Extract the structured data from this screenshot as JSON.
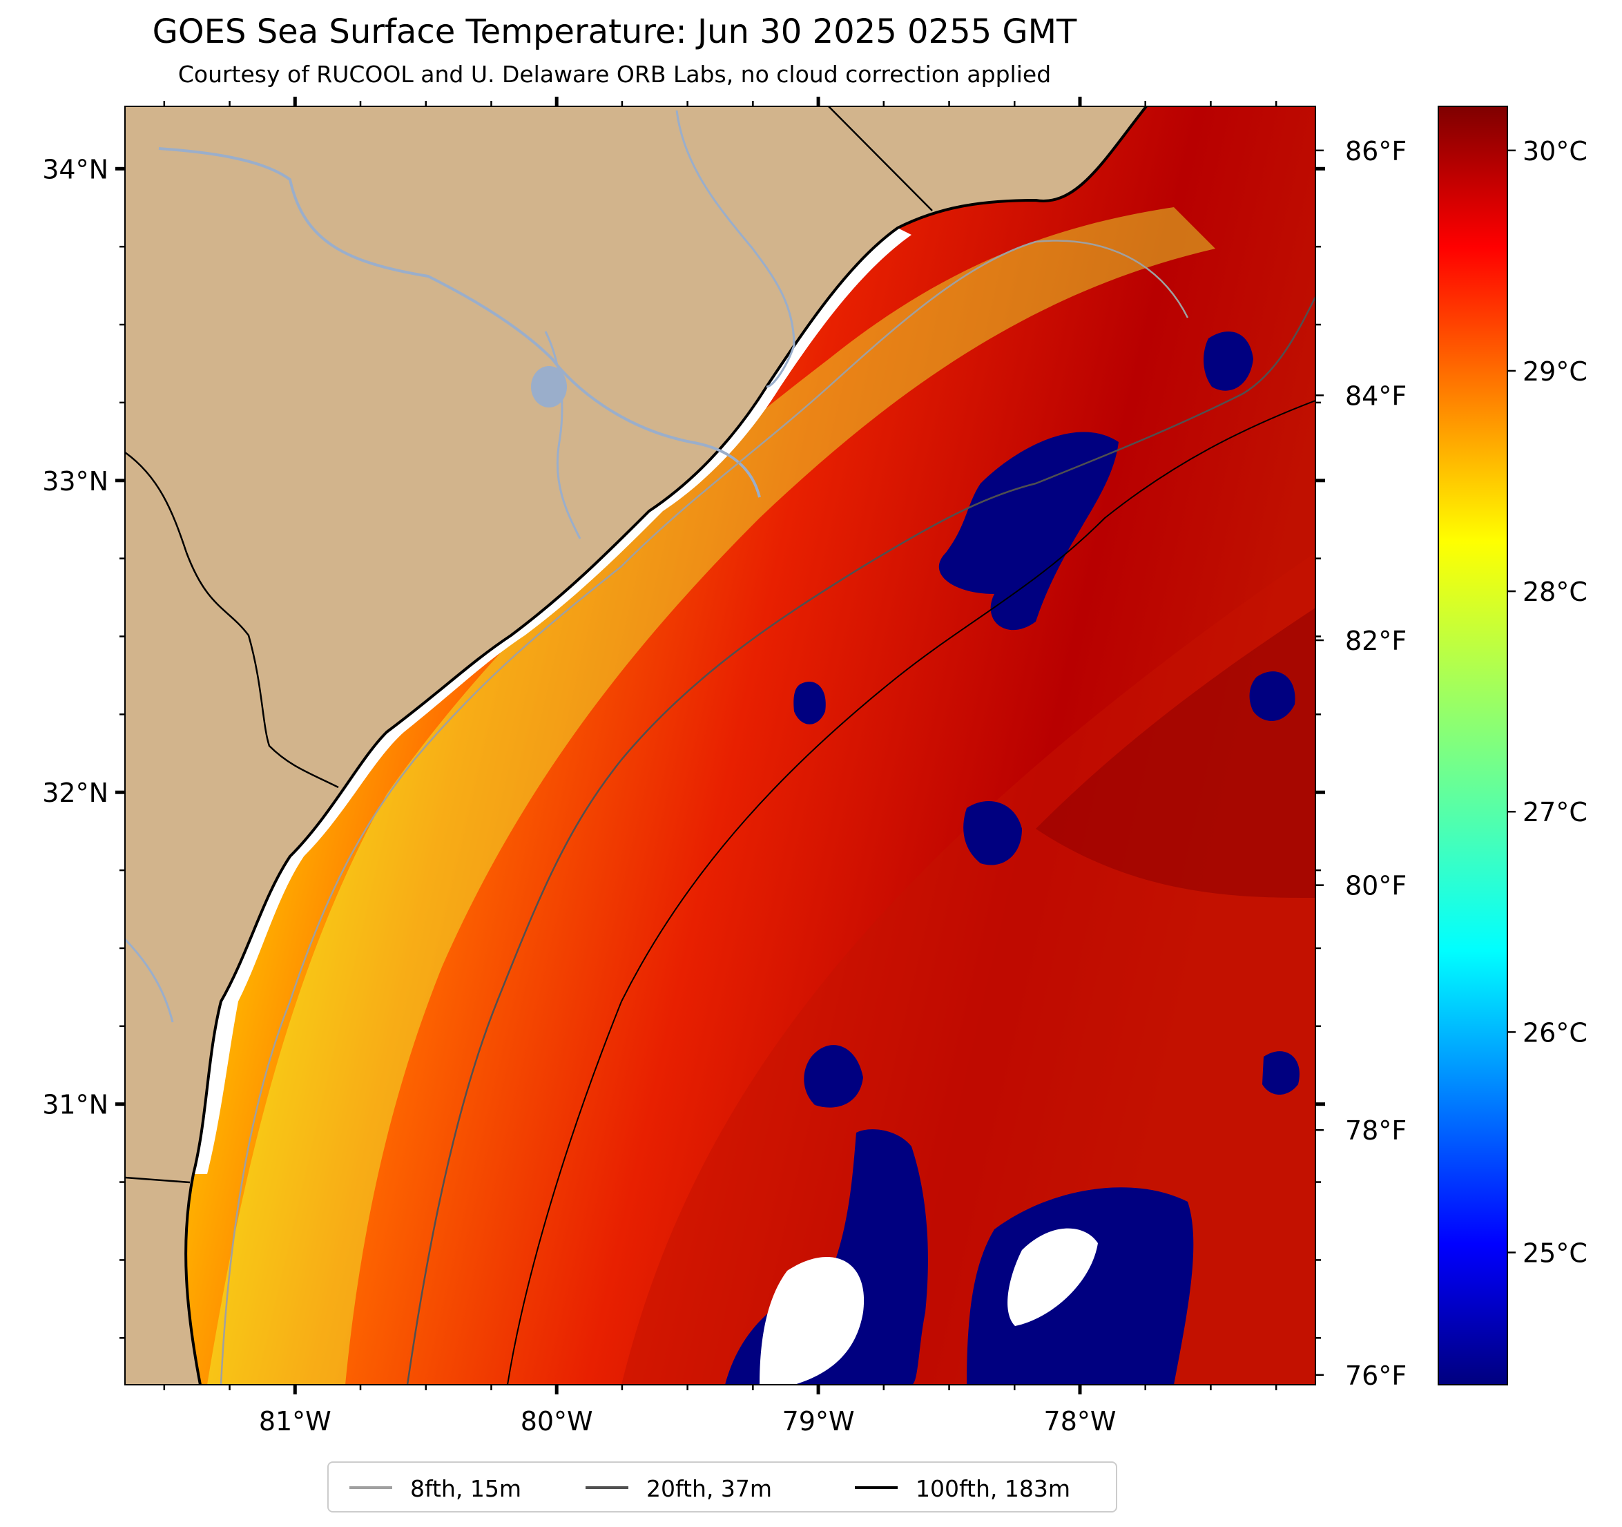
{
  "title": "GOES Sea Surface Temperature: Jun 30 2025 0255 GMT",
  "subtitle": "Courtesy of RUCOOL and U. Delaware ORB Labs, no cloud correction applied",
  "map": {
    "region": "Southeast U.S. coast (South Carolina / Georgia)",
    "lat_range": [
      30.1,
      34.2
    ],
    "lon_range": [
      -81.65,
      -77.1
    ],
    "lat_labels": [
      "34°N",
      "33°N",
      "32°N",
      "31°N"
    ],
    "lat_values": [
      34,
      33,
      32,
      31
    ],
    "lon_labels": [
      "81°W",
      "80°W",
      "79°W",
      "78°W"
    ],
    "lon_values": [
      -81,
      -80,
      -79,
      -78
    ],
    "land_color": "#d2b48c",
    "colormap": "jet"
  },
  "fahrenheit_axis": {
    "labels": [
      "86°F",
      "84°F",
      "82°F",
      "80°F",
      "78°F",
      "76°F"
    ],
    "values": [
      86,
      84,
      82,
      80,
      78,
      76
    ]
  },
  "colorbar": {
    "labels": [
      "30°C",
      "29°C",
      "28°C",
      "27°C",
      "26°C",
      "25°C"
    ],
    "values": [
      30,
      29,
      28,
      27,
      26,
      25
    ],
    "range_c": [
      24.4,
      30.2
    ]
  },
  "legend": [
    {
      "label": "8fth, 15m",
      "color": "#a0a0a0"
    },
    {
      "label": "20fth, 37m",
      "color": "#505050"
    },
    {
      "label": "100fth, 183m",
      "color": "#000000"
    }
  ]
}
